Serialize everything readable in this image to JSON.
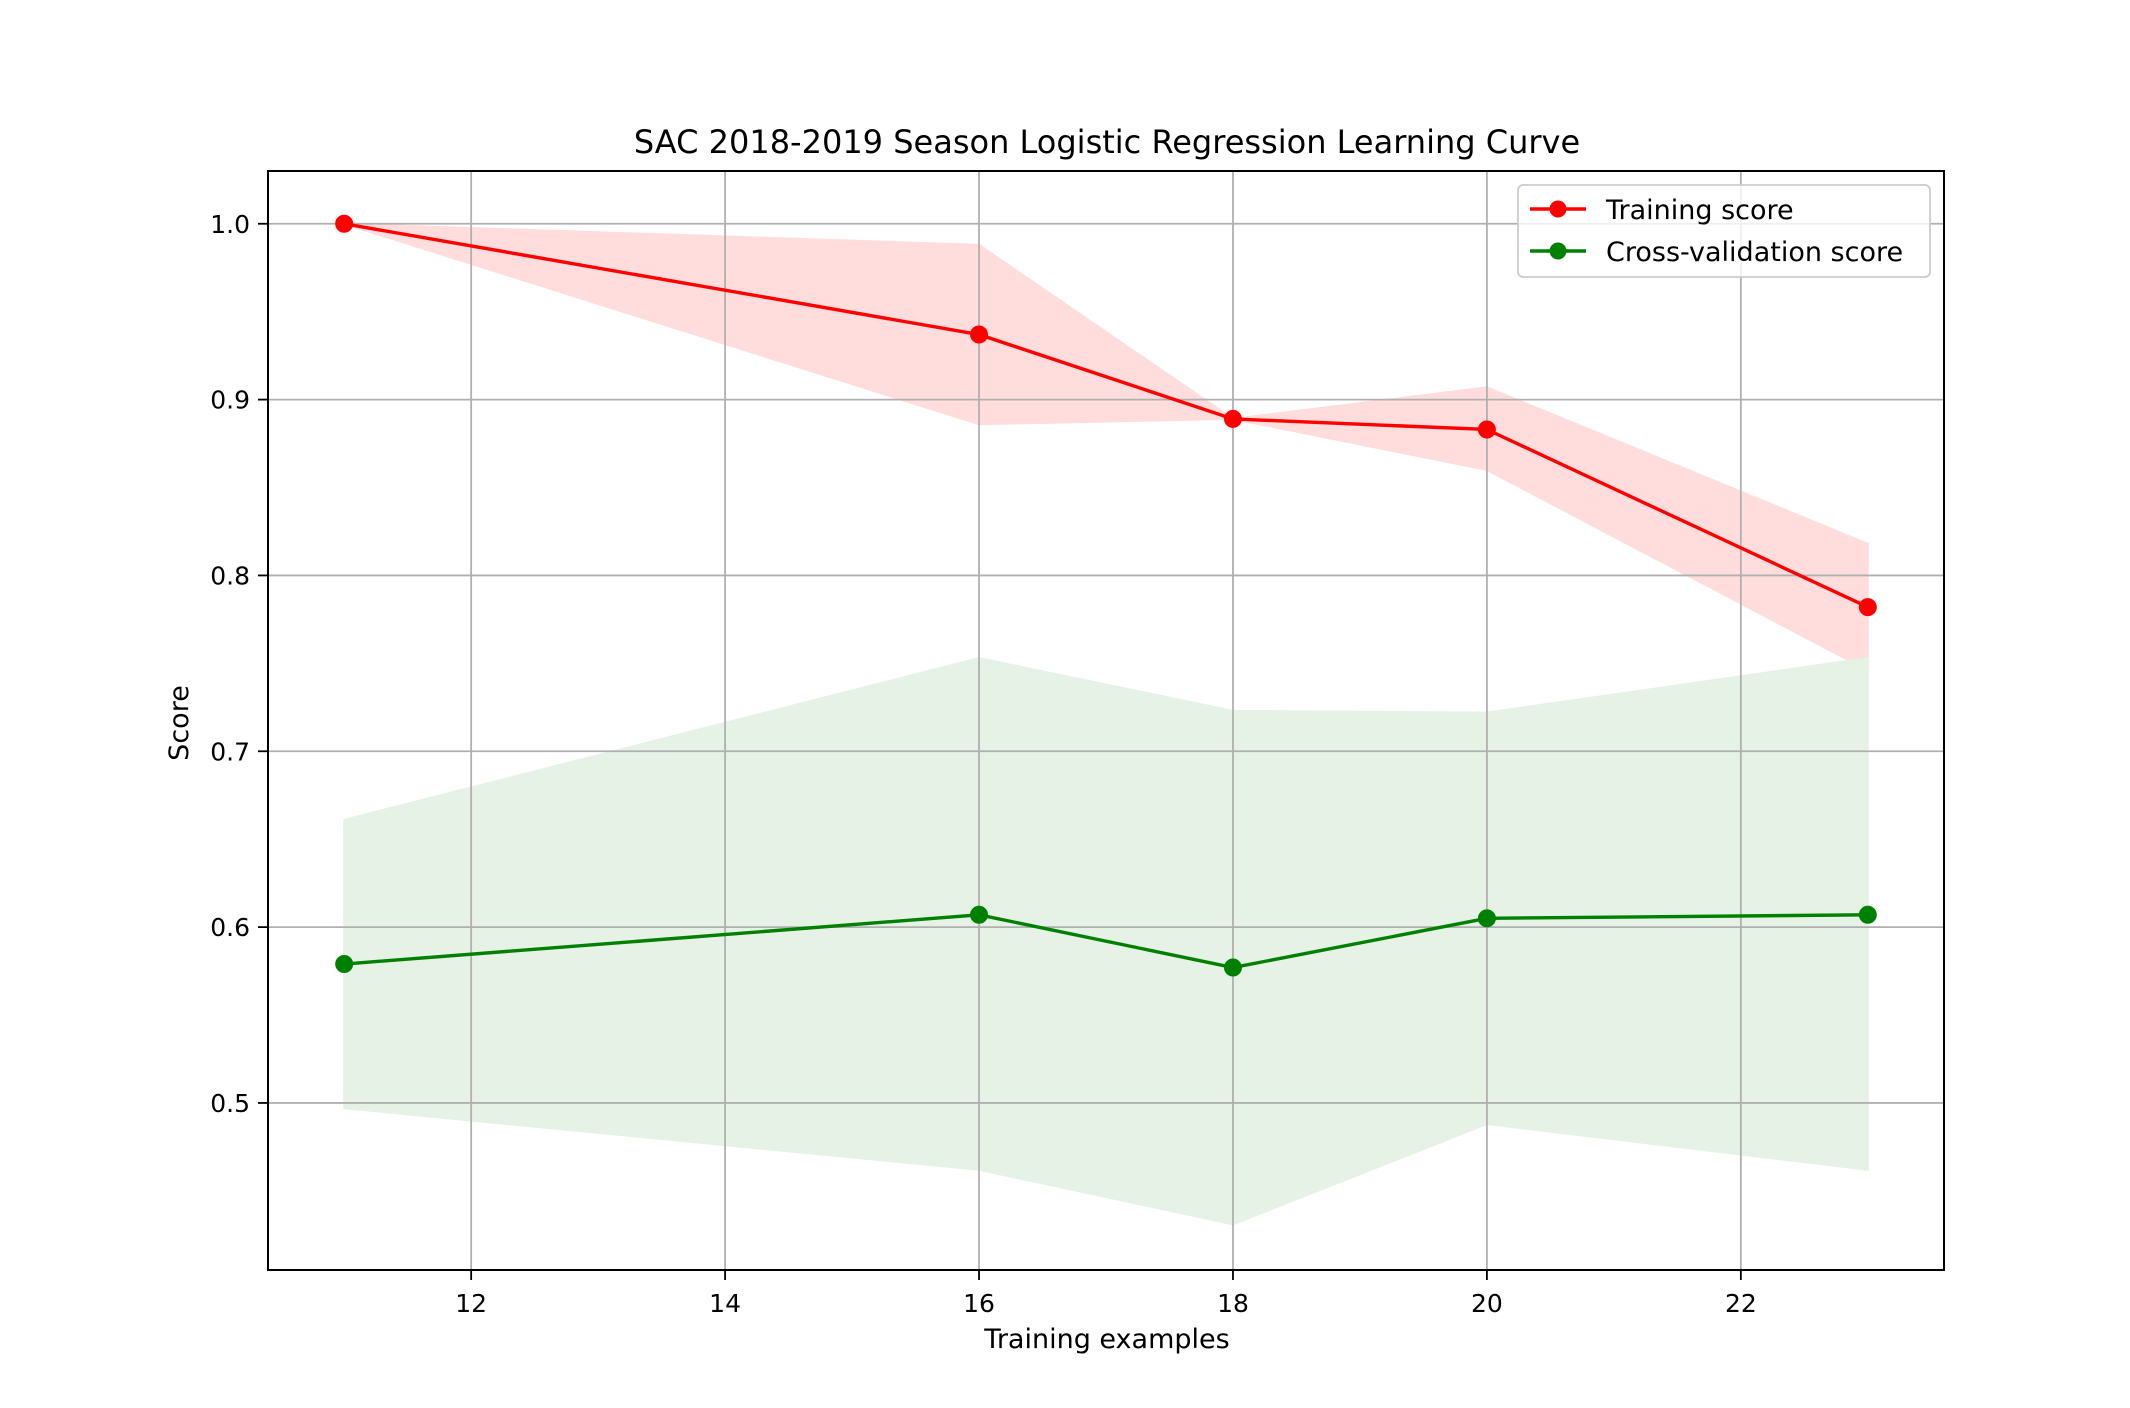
{
  "chart_data": {
    "type": "line",
    "title": "SAC 2018-2019 Season Logistic Regression Learning Curve",
    "xlabel": "Training examples",
    "ylabel": "Score",
    "xlim": [
      10.4,
      23.6
    ],
    "ylim": [
      0.405,
      1.03
    ],
    "xticks": [
      12,
      14,
      16,
      18,
      20,
      22
    ],
    "yticks": [
      0.5,
      0.6,
      0.7,
      0.8,
      0.9,
      1.0
    ],
    "xtick_labels": [
      "12",
      "14",
      "16",
      "18",
      "20",
      "22"
    ],
    "ytick_labels": [
      "0.5",
      "0.6",
      "0.7",
      "0.8",
      "0.9",
      "1.0"
    ],
    "grid": true,
    "legend_position": "top-right",
    "x": [
      11,
      16,
      18,
      20,
      23
    ],
    "series": [
      {
        "name": "Training score",
        "color": "#ff0000",
        "band_color": "#ffdddd",
        "values": [
          1.0,
          0.937,
          0.889,
          0.883,
          0.782
        ],
        "band_upper": [
          1.0,
          0.988,
          0.889,
          0.907,
          0.818
        ],
        "band_lower": [
          1.0,
          0.886,
          0.889,
          0.86,
          0.746
        ]
      },
      {
        "name": "Cross-validation score",
        "color": "#008000",
        "band_color": "#e5f2e5",
        "values": [
          0.579,
          0.607,
          0.577,
          0.605,
          0.607
        ],
        "band_upper": [
          0.661,
          0.753,
          0.723,
          0.722,
          0.753
        ],
        "band_lower": [
          0.497,
          0.462,
          0.431,
          0.488,
          0.462
        ]
      }
    ]
  }
}
